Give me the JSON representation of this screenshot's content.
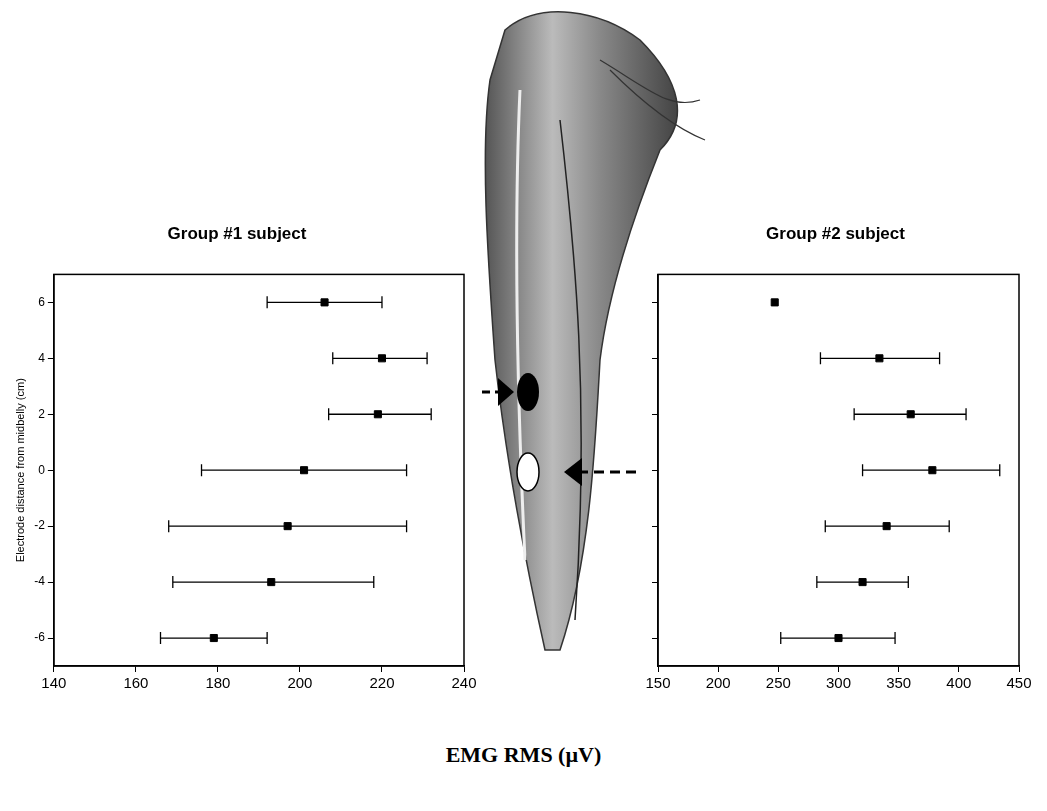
{
  "chart_data": [
    {
      "type": "scatter",
      "title": "Group #1 subject",
      "y_label": "Electrode distance from midbelly (cm)",
      "y": [
        6,
        4,
        2,
        0,
        -2,
        -4,
        -6
      ],
      "x": [
        206,
        220,
        219,
        201,
        197,
        193,
        179
      ],
      "error_bars": [
        [
          192,
          220
        ],
        [
          208,
          231
        ],
        [
          207,
          232
        ],
        [
          176,
          226
        ],
        [
          168,
          226
        ],
        [
          169,
          218
        ],
        [
          166,
          192
        ]
      ],
      "color": "#000000",
      "marker": "square",
      "xlim": [
        140,
        240
      ],
      "xticks": [
        140,
        160,
        180,
        200,
        220,
        240
      ],
      "ylim": [
        -7,
        7
      ],
      "yticks": [
        -6,
        -4,
        -2,
        0,
        2,
        4,
        6
      ],
      "grid": false
    },
    {
      "type": "scatter",
      "title": "Group #2 subject",
      "y": [
        6,
        4,
        2,
        0,
        -2,
        -4,
        -6
      ],
      "x": [
        247,
        334,
        360,
        378,
        340,
        320,
        300
      ],
      "error_bars": [
        null,
        [
          285,
          384
        ],
        [
          313,
          406
        ],
        [
          320,
          434
        ],
        [
          289,
          392
        ],
        [
          282,
          358
        ],
        [
          252,
          347
        ]
      ],
      "color": "#000000",
      "marker": "square",
      "xlim": [
        150,
        450
      ],
      "xticks": [
        150,
        200,
        250,
        300,
        350,
        400,
        450
      ],
      "ylim": [
        -7,
        7
      ],
      "yticks": [
        -6,
        -4,
        -2,
        0,
        2,
        4,
        6
      ],
      "grid": false,
      "tick_labels": "x"
    }
  ],
  "x_label": "EMG RMS (µV)"
}
